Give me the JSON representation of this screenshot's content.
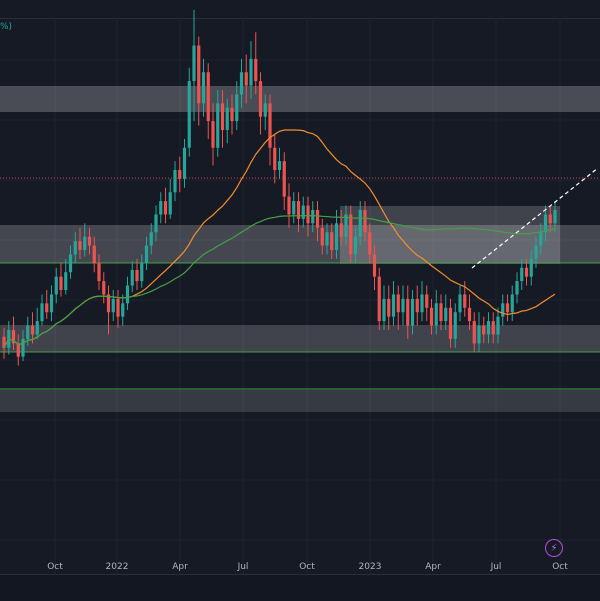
{
  "header": {
    "symbol_fragment": "%)"
  },
  "chart_data": {
    "type": "candlestick",
    "x_ticks": [
      "Oct",
      "2022",
      "Apr",
      "Jul",
      "Oct",
      "2023",
      "Apr",
      "Jul",
      "Oct"
    ],
    "candles": [
      {
        "o": 225,
        "c": 220,
        "h": 229,
        "l": 215
      },
      {
        "o": 220,
        "c": 228,
        "h": 232,
        "l": 217
      },
      {
        "o": 228,
        "c": 222,
        "h": 234,
        "l": 219
      },
      {
        "o": 222,
        "c": 216,
        "h": 226,
        "l": 212
      },
      {
        "o": 216,
        "c": 224,
        "h": 228,
        "l": 214
      },
      {
        "o": 224,
        "c": 230,
        "h": 234,
        "l": 221
      },
      {
        "o": 230,
        "c": 226,
        "h": 236,
        "l": 222
      },
      {
        "o": 226,
        "c": 232,
        "h": 238,
        "l": 224
      },
      {
        "o": 232,
        "c": 240,
        "h": 244,
        "l": 230
      },
      {
        "o": 240,
        "c": 236,
        "h": 246,
        "l": 233
      },
      {
        "o": 236,
        "c": 244,
        "h": 248,
        "l": 232
      },
      {
        "o": 244,
        "c": 252,
        "h": 256,
        "l": 240
      },
      {
        "o": 252,
        "c": 246,
        "h": 258,
        "l": 243
      },
      {
        "o": 246,
        "c": 254,
        "h": 260,
        "l": 244
      },
      {
        "o": 254,
        "c": 262,
        "h": 266,
        "l": 251
      },
      {
        "o": 262,
        "c": 268,
        "h": 272,
        "l": 258
      },
      {
        "o": 268,
        "c": 264,
        "h": 274,
        "l": 260
      },
      {
        "o": 264,
        "c": 270,
        "h": 276,
        "l": 261
      },
      {
        "o": 270,
        "c": 266,
        "h": 274,
        "l": 262
      },
      {
        "o": 266,
        "c": 258,
        "h": 270,
        "l": 254
      },
      {
        "o": 258,
        "c": 250,
        "h": 262,
        "l": 246
      },
      {
        "o": 250,
        "c": 244,
        "h": 254,
        "l": 240
      },
      {
        "o": 244,
        "c": 236,
        "h": 248,
        "l": 226
      },
      {
        "o": 236,
        "c": 242,
        "h": 246,
        "l": 232
      },
      {
        "o": 242,
        "c": 234,
        "h": 246,
        "l": 229
      },
      {
        "o": 234,
        "c": 240,
        "h": 244,
        "l": 230
      },
      {
        "o": 240,
        "c": 248,
        "h": 252,
        "l": 237
      },
      {
        "o": 248,
        "c": 255,
        "h": 259,
        "l": 245
      },
      {
        "o": 255,
        "c": 250,
        "h": 260,
        "l": 246
      },
      {
        "o": 250,
        "c": 258,
        "h": 262,
        "l": 247
      },
      {
        "o": 258,
        "c": 266,
        "h": 270,
        "l": 255
      },
      {
        "o": 266,
        "c": 272,
        "h": 276,
        "l": 262
      },
      {
        "o": 272,
        "c": 280,
        "h": 284,
        "l": 268
      },
      {
        "o": 280,
        "c": 286,
        "h": 290,
        "l": 276
      },
      {
        "o": 286,
        "c": 280,
        "h": 292,
        "l": 276
      },
      {
        "o": 280,
        "c": 290,
        "h": 296,
        "l": 278
      },
      {
        "o": 290,
        "c": 300,
        "h": 304,
        "l": 286
      },
      {
        "o": 300,
        "c": 296,
        "h": 306,
        "l": 290
      },
      {
        "o": 296,
        "c": 310,
        "h": 314,
        "l": 292
      },
      {
        "o": 310,
        "c": 340,
        "h": 346,
        "l": 306
      },
      {
        "o": 340,
        "c": 356,
        "h": 372,
        "l": 322
      },
      {
        "o": 356,
        "c": 330,
        "h": 360,
        "l": 320
      },
      {
        "o": 330,
        "c": 344,
        "h": 350,
        "l": 324
      },
      {
        "o": 344,
        "c": 322,
        "h": 348,
        "l": 314
      },
      {
        "o": 322,
        "c": 310,
        "h": 330,
        "l": 302
      },
      {
        "o": 310,
        "c": 330,
        "h": 336,
        "l": 306
      },
      {
        "o": 330,
        "c": 318,
        "h": 336,
        "l": 310
      },
      {
        "o": 318,
        "c": 328,
        "h": 332,
        "l": 312
      },
      {
        "o": 328,
        "c": 322,
        "h": 334,
        "l": 316
      },
      {
        "o": 322,
        "c": 334,
        "h": 340,
        "l": 318
      },
      {
        "o": 334,
        "c": 344,
        "h": 350,
        "l": 328
      },
      {
        "o": 344,
        "c": 338,
        "h": 352,
        "l": 330
      },
      {
        "o": 338,
        "c": 350,
        "h": 358,
        "l": 332
      },
      {
        "o": 350,
        "c": 340,
        "h": 362,
        "l": 334
      },
      {
        "o": 340,
        "c": 324,
        "h": 344,
        "l": 316
      },
      {
        "o": 324,
        "c": 330,
        "h": 334,
        "l": 318
      },
      {
        "o": 330,
        "c": 310,
        "h": 334,
        "l": 302
      },
      {
        "o": 310,
        "c": 300,
        "h": 316,
        "l": 294
      },
      {
        "o": 300,
        "c": 304,
        "h": 310,
        "l": 296
      },
      {
        "o": 304,
        "c": 288,
        "h": 308,
        "l": 282
      },
      {
        "o": 288,
        "c": 280,
        "h": 294,
        "l": 274
      },
      {
        "o": 280,
        "c": 286,
        "h": 290,
        "l": 276
      },
      {
        "o": 286,
        "c": 278,
        "h": 290,
        "l": 272
      },
      {
        "o": 278,
        "c": 284,
        "h": 288,
        "l": 274
      },
      {
        "o": 284,
        "c": 276,
        "h": 288,
        "l": 270
      },
      {
        "o": 276,
        "c": 282,
        "h": 286,
        "l": 272
      },
      {
        "o": 282,
        "c": 274,
        "h": 286,
        "l": 268
      },
      {
        "o": 274,
        "c": 266,
        "h": 278,
        "l": 262
      },
      {
        "o": 266,
        "c": 272,
        "h": 276,
        "l": 262
      },
      {
        "o": 272,
        "c": 264,
        "h": 276,
        "l": 260
      },
      {
        "o": 264,
        "c": 276,
        "h": 282,
        "l": 260
      },
      {
        "o": 276,
        "c": 270,
        "h": 282,
        "l": 266
      },
      {
        "o": 270,
        "c": 280,
        "h": 284,
        "l": 266
      },
      {
        "o": 280,
        "c": 262,
        "h": 284,
        "l": 258
      },
      {
        "o": 262,
        "c": 270,
        "h": 274,
        "l": 258
      },
      {
        "o": 270,
        "c": 282,
        "h": 286,
        "l": 266
      },
      {
        "o": 282,
        "c": 272,
        "h": 286,
        "l": 268
      },
      {
        "o": 272,
        "c": 262,
        "h": 276,
        "l": 258
      },
      {
        "o": 262,
        "c": 252,
        "h": 266,
        "l": 246
      },
      {
        "o": 252,
        "c": 232,
        "h": 256,
        "l": 228
      },
      {
        "o": 232,
        "c": 242,
        "h": 248,
        "l": 228
      },
      {
        "o": 242,
        "c": 234,
        "h": 248,
        "l": 228
      },
      {
        "o": 234,
        "c": 244,
        "h": 250,
        "l": 230
      },
      {
        "o": 244,
        "c": 236,
        "h": 248,
        "l": 228
      },
      {
        "o": 236,
        "c": 242,
        "h": 248,
        "l": 230
      },
      {
        "o": 242,
        "c": 230,
        "h": 248,
        "l": 224
      },
      {
        "o": 230,
        "c": 242,
        "h": 246,
        "l": 226
      },
      {
        "o": 242,
        "c": 236,
        "h": 248,
        "l": 230
      },
      {
        "o": 236,
        "c": 244,
        "h": 250,
        "l": 232
      },
      {
        "o": 244,
        "c": 238,
        "h": 248,
        "l": 232
      },
      {
        "o": 238,
        "c": 230,
        "h": 242,
        "l": 226
      },
      {
        "o": 230,
        "c": 240,
        "h": 246,
        "l": 226
      },
      {
        "o": 240,
        "c": 232,
        "h": 244,
        "l": 228
      },
      {
        "o": 232,
        "c": 238,
        "h": 244,
        "l": 228
      },
      {
        "o": 238,
        "c": 224,
        "h": 242,
        "l": 220
      },
      {
        "o": 224,
        "c": 236,
        "h": 240,
        "l": 220
      },
      {
        "o": 236,
        "c": 244,
        "h": 248,
        "l": 232
      },
      {
        "o": 244,
        "c": 238,
        "h": 250,
        "l": 234
      },
      {
        "o": 238,
        "c": 232,
        "h": 244,
        "l": 228
      },
      {
        "o": 232,
        "c": 222,
        "h": 236,
        "l": 218
      },
      {
        "o": 222,
        "c": 230,
        "h": 236,
        "l": 218
      },
      {
        "o": 230,
        "c": 226,
        "h": 234,
        "l": 222
      },
      {
        "o": 226,
        "c": 232,
        "h": 236,
        "l": 222
      },
      {
        "o": 232,
        "c": 226,
        "h": 236,
        "l": 222
      },
      {
        "o": 226,
        "c": 234,
        "h": 238,
        "l": 222
      },
      {
        "o": 234,
        "c": 240,
        "h": 244,
        "l": 230
      },
      {
        "o": 240,
        "c": 236,
        "h": 244,
        "l": 232
      },
      {
        "o": 236,
        "c": 244,
        "h": 248,
        "l": 232
      },
      {
        "o": 244,
        "c": 250,
        "h": 254,
        "l": 240
      },
      {
        "o": 250,
        "c": 256,
        "h": 260,
        "l": 246
      },
      {
        "o": 256,
        "c": 252,
        "h": 260,
        "l": 248
      },
      {
        "o": 252,
        "c": 260,
        "h": 264,
        "l": 248
      },
      {
        "o": 260,
        "c": 266,
        "h": 270,
        "l": 256
      },
      {
        "o": 266,
        "c": 272,
        "h": 276,
        "l": 262
      },
      {
        "o": 272,
        "c": 280,
        "h": 284,
        "l": 268
      },
      {
        "o": 280,
        "c": 276,
        "h": 284,
        "l": 272
      },
      {
        "o": 276,
        "c": 282,
        "h": 286,
        "l": 272
      }
    ],
    "colors": {
      "up": "#26a69a",
      "down": "#ef5350",
      "ma_orange": "#f48d2b",
      "ma_green": "#43a047",
      "zone": "#ffffff",
      "dashed": "#ffffff"
    }
  }
}
